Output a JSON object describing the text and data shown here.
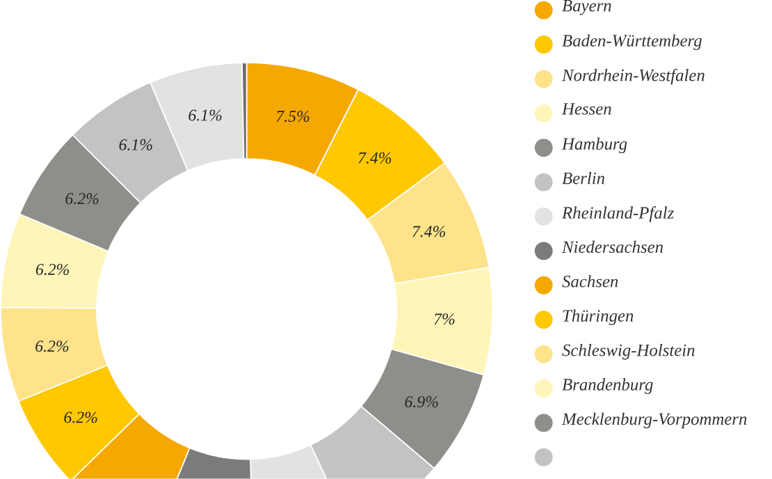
{
  "chart_data": {
    "type": "donut",
    "categories": [
      "Bayern",
      "Baden-Württemberg",
      "Nordrhein-Westfalen",
      "Hessen",
      "Hamburg",
      "Berlin",
      "Rheinland-Pfalz",
      "Niedersachsen",
      "Sachsen",
      "Thüringen",
      "Schleswig-Holstein",
      "Brandenburg",
      "Mecklenburg-Vorpommern",
      null,
      null,
      null
    ],
    "values": [
      7.5,
      7.4,
      7.4,
      7,
      6.9,
      6.8,
      6.6,
      6.6,
      6.5,
      6.2,
      6.2,
      6.2,
      6.2,
      6.1,
      6.1,
      0.3
    ],
    "colors": [
      "#f5a800",
      "#ffc800",
      "#fee38a",
      "#fff5b8",
      "#8e8e8b",
      "#c2c3c5",
      "#e2e2e2",
      "#7b7b7b",
      "#f5a800",
      "#ffc800",
      "#fee38a",
      "#fff5b8",
      "#8e8e8b",
      "#c2c3c5",
      "#e2e2e2",
      "#6e6e6e"
    ],
    "value_labels": [
      "7.5%",
      "7.4%",
      "7.4%",
      "7%",
      "6.9%",
      null,
      null,
      null,
      null,
      "6.2%",
      "6.2%",
      "6.2%",
      "6.2%",
      "6.1%",
      "6.1%",
      null
    ],
    "legend": "right"
  }
}
